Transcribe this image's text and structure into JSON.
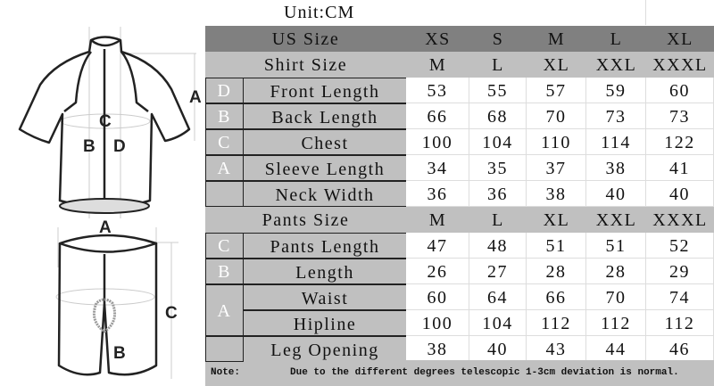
{
  "unit_label": "Unit:CM",
  "diagram_labels": {
    "shirt": [
      "A",
      "B",
      "C",
      "D"
    ],
    "pants": [
      "A",
      "B",
      "C"
    ]
  },
  "us_size": {
    "label": "US Size",
    "values": [
      "XS",
      "S",
      "M",
      "L",
      "XL"
    ]
  },
  "shirt": {
    "label": "Shirt Size",
    "sizes": [
      "M",
      "L",
      "XL",
      "XXL",
      "XXXL"
    ],
    "rows": [
      {
        "letter": "D",
        "name": "Front Length",
        "values": [
          53,
          55,
          57,
          59,
          60
        ]
      },
      {
        "letter": "B",
        "name": "Back Length",
        "values": [
          66,
          68,
          70,
          73,
          73
        ]
      },
      {
        "letter": "C",
        "name": "Chest",
        "values": [
          100,
          104,
          110,
          114,
          122
        ]
      },
      {
        "letter": "A",
        "name": "Sleeve Length",
        "values": [
          34,
          35,
          37,
          38,
          41
        ]
      },
      {
        "letter": "",
        "name": "Neck Width",
        "values": [
          36,
          36,
          38,
          40,
          40
        ]
      }
    ]
  },
  "pants": {
    "label": "Pants Size",
    "sizes": [
      "M",
      "L",
      "XL",
      "XXL",
      "XXXL"
    ],
    "rows": [
      {
        "letter": "C",
        "name": "Pants Length",
        "values": [
          47,
          48,
          51,
          51,
          52
        ]
      },
      {
        "letter": "B",
        "name": "Length",
        "values": [
          26,
          27,
          28,
          28,
          29
        ]
      },
      {
        "letter": "A",
        "name": "Waist",
        "values": [
          60,
          64,
          66,
          70,
          74
        ]
      },
      {
        "letter": "",
        "name": "Hipline",
        "values": [
          100,
          104,
          112,
          112,
          112
        ]
      },
      {
        "letter": "",
        "name": "Leg Opening",
        "values": [
          38,
          40,
          43,
          44,
          46
        ]
      }
    ]
  },
  "note": {
    "label": "Note:",
    "text": "Due to the different degrees telescopic 1-3cm deviation is normal."
  },
  "colors": {
    "header_dark": "#808080",
    "header_light": "#c0c0c0"
  }
}
